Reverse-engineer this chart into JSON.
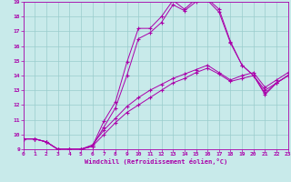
{
  "bg_color": "#c8eaea",
  "line_color": "#aa00aa",
  "grid_color": "#99cccc",
  "xlabel": "Windchill (Refroidissement éolien,°C)",
  "xmin": 0,
  "xmax": 23,
  "ymin": 9,
  "ymax": 19,
  "curves": [
    {
      "x": [
        0,
        1,
        2,
        3,
        4,
        5,
        6,
        7,
        8,
        9,
        10,
        11,
        12,
        13,
        14,
        15,
        16,
        17,
        18,
        19,
        20,
        21,
        22,
        23
      ],
      "y": [
        9.7,
        9.7,
        9.5,
        9.0,
        9.0,
        9.0,
        9.2,
        10.9,
        12.2,
        14.9,
        17.2,
        17.2,
        18.0,
        19.1,
        18.5,
        19.2,
        19.2,
        18.5,
        16.3,
        14.7,
        14.0,
        12.7,
        13.5,
        14.0
      ]
    },
    {
      "x": [
        0,
        1,
        2,
        3,
        4,
        5,
        6,
        7,
        8,
        9,
        10,
        11,
        12,
        13,
        14,
        15,
        16,
        17,
        18,
        19,
        20,
        21,
        22,
        23
      ],
      "y": [
        9.7,
        9.7,
        9.5,
        9.0,
        9.0,
        9.0,
        9.2,
        10.5,
        11.8,
        14.0,
        16.5,
        16.9,
        17.6,
        18.8,
        18.4,
        19.0,
        19.1,
        18.3,
        16.2,
        14.7,
        14.0,
        12.8,
        13.5,
        14.0
      ]
    },
    {
      "x": [
        0,
        1,
        2,
        3,
        4,
        5,
        6,
        7,
        8,
        9,
        10,
        11,
        12,
        13,
        14,
        15,
        16,
        17,
        18,
        19,
        20,
        21,
        22,
        23
      ],
      "y": [
        9.7,
        9.7,
        9.5,
        9.0,
        9.0,
        9.0,
        9.2,
        10.0,
        10.8,
        11.5,
        12.0,
        12.5,
        13.0,
        13.5,
        13.8,
        14.2,
        14.5,
        14.1,
        13.6,
        13.8,
        14.0,
        13.0,
        13.5,
        14.0
      ]
    },
    {
      "x": [
        0,
        1,
        2,
        3,
        4,
        5,
        6,
        7,
        8,
        9,
        10,
        11,
        12,
        13,
        14,
        15,
        16,
        17,
        18,
        19,
        20,
        21,
        22,
        23
      ],
      "y": [
        9.7,
        9.7,
        9.5,
        9.0,
        9.0,
        9.0,
        9.3,
        10.3,
        11.1,
        11.9,
        12.5,
        13.0,
        13.4,
        13.8,
        14.1,
        14.4,
        14.7,
        14.2,
        13.7,
        14.0,
        14.2,
        13.2,
        13.7,
        14.2
      ]
    }
  ]
}
